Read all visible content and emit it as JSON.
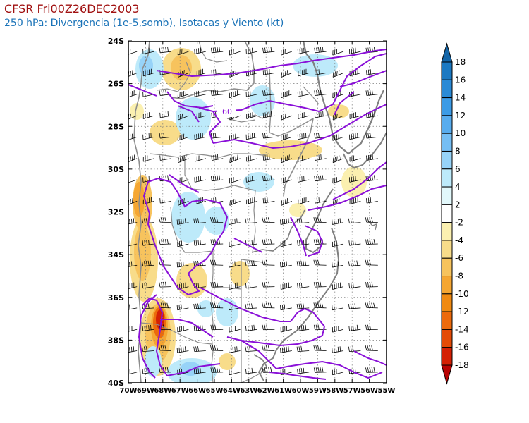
{
  "header": {
    "title": "CFSR Fri00Z26DEC2003",
    "subtitle": "250 hPa: Divergencia (1e-5,somb), Isotacas y Viento (kt)"
  },
  "map": {
    "lon_range": [
      -70,
      -55
    ],
    "lat_range": [
      -40,
      -24
    ],
    "y_tick_labels": [
      "24S",
      "26S",
      "28S",
      "30S",
      "32S",
      "34S",
      "36S",
      "38S",
      "40S"
    ],
    "x_tick_labels": [
      "70W",
      "69W",
      "68W",
      "67W",
      "66W",
      "65W",
      "64W",
      "63W",
      "62W",
      "61W",
      "60W",
      "59W",
      "58W",
      "57W",
      "56W",
      "55W"
    ],
    "isotach_label": "60",
    "colors": {
      "isotach": "#8a10d8",
      "coast": "#808080",
      "border": "#8c8c8c",
      "barb": "#000000",
      "grid": "#7a7a7a"
    }
  },
  "colorbar": {
    "labels": [
      "18",
      "16",
      "14",
      "12",
      "10",
      "8",
      "6",
      "4",
      "2",
      "-2",
      "-4",
      "-6",
      "-8",
      "-10",
      "-12",
      "-14",
      "-16",
      "-18"
    ],
    "colors": [
      "#1466a8",
      "#1c79c2",
      "#2a8ad6",
      "#3c9be6",
      "#58acee",
      "#75bef4",
      "#97d3f8",
      "#bdeafa",
      "#e2f8fb",
      "#ffffff",
      "#fbf0b0",
      "#f8dc8a",
      "#f7c35d",
      "#f5a632",
      "#f08a12",
      "#ec6a0c",
      "#e44b06",
      "#d42004",
      "#b80303"
    ]
  }
}
